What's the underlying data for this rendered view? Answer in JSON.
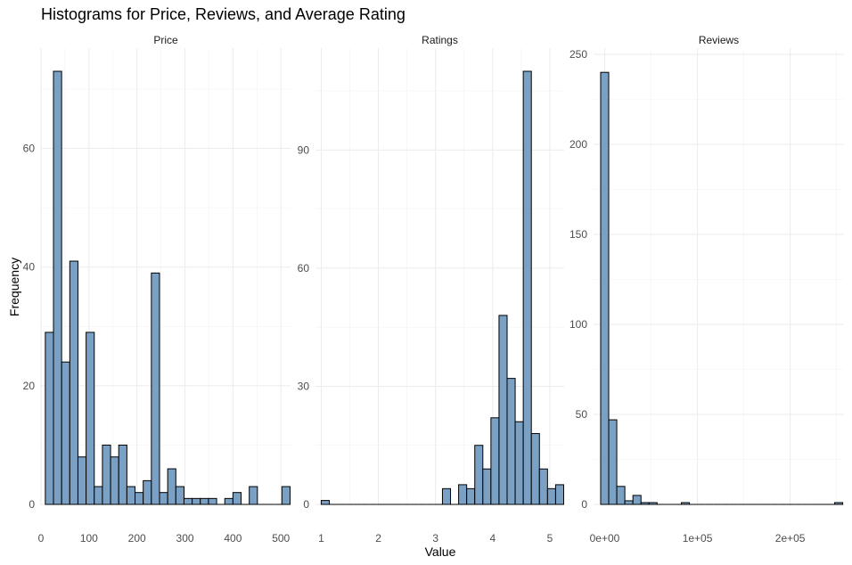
{
  "chart_data": {
    "type": "bar",
    "title": "Histograms for Price, Reviews, and Average Rating",
    "xlabel": "Value",
    "ylabel": "Frequency",
    "bar_fill": "#7aa0c4",
    "bar_stroke": "#000000",
    "grid": true,
    "panels": [
      {
        "name": "Price",
        "xlim": [
          0,
          520
        ],
        "ylim": [
          0,
          73
        ],
        "xticks": [
          {
            "value": 0,
            "label": "0"
          },
          {
            "value": 100,
            "label": "100"
          },
          {
            "value": 200,
            "label": "200"
          },
          {
            "value": 300,
            "label": "300"
          },
          {
            "value": 400,
            "label": "400"
          },
          {
            "value": 500,
            "label": "500"
          }
        ],
        "yticks": [
          {
            "value": 0,
            "label": "0"
          },
          {
            "value": 20,
            "label": "20"
          },
          {
            "value": 40,
            "label": "40"
          },
          {
            "value": 60,
            "label": "60"
          }
        ],
        "bin_width": 17,
        "bin_starts": [
          9,
          26,
          43,
          60,
          77,
          94,
          111,
          128,
          145,
          162,
          179,
          196,
          213,
          230,
          247,
          264,
          281,
          298,
          315,
          332,
          349,
          366,
          383,
          400,
          417,
          434,
          451,
          468,
          485,
          502
        ],
        "counts": [
          29,
          73,
          24,
          41,
          8,
          29,
          3,
          10,
          8,
          10,
          3,
          2,
          4,
          39,
          2,
          6,
          3,
          1,
          1,
          1,
          1,
          0,
          1,
          2,
          0,
          3,
          0,
          0,
          0,
          3
        ]
      },
      {
        "name": "Ratings",
        "xlim": [
          0.9,
          5.25
        ],
        "ylim": [
          0,
          110
        ],
        "xticks": [
          {
            "value": 1,
            "label": "1"
          },
          {
            "value": 2,
            "label": "2"
          },
          {
            "value": 3,
            "label": "3"
          },
          {
            "value": 4,
            "label": "4"
          },
          {
            "value": 5,
            "label": "5"
          }
        ],
        "yticks": [
          {
            "value": 0,
            "label": "0"
          },
          {
            "value": 30,
            "label": "30"
          },
          {
            "value": 60,
            "label": "60"
          },
          {
            "value": 90,
            "label": "90"
          }
        ],
        "bin_width": 0.1414,
        "bin_starts": [
          1.0,
          1.1414,
          1.2828,
          1.4242,
          1.5656,
          1.707,
          1.8484,
          1.9898,
          2.1312,
          2.2726,
          2.414,
          2.5554,
          2.6968,
          2.8382,
          2.9796,
          3.121,
          3.2624,
          3.4038,
          3.5452,
          3.6866,
          3.828,
          3.9694,
          4.1108,
          4.2522,
          4.3936,
          4.535,
          4.6764,
          4.8178,
          4.9592,
          5.1006
        ],
        "counts": [
          1,
          0,
          0,
          0,
          0,
          0,
          0,
          0,
          0,
          0,
          0,
          0,
          0,
          0,
          0,
          4,
          0,
          5,
          4,
          15,
          9,
          22,
          48,
          32,
          21,
          110,
          18,
          9,
          4,
          5
        ]
      },
      {
        "name": "Reviews",
        "xlim": [
          -12000,
          258000
        ],
        "ylim": [
          0,
          250
        ],
        "xticks": [
          {
            "value": 0,
            "label": "0e+00"
          },
          {
            "value": 100000,
            "label": "1e+05"
          },
          {
            "value": 200000,
            "label": "2e+05"
          }
        ],
        "yticks": [
          {
            "value": 0,
            "label": "0"
          },
          {
            "value": 50,
            "label": "50"
          },
          {
            "value": 100,
            "label": "100"
          },
          {
            "value": 150,
            "label": "150"
          },
          {
            "value": 200,
            "label": "200"
          },
          {
            "value": 250,
            "label": "250"
          }
        ],
        "bin_width": 8700,
        "bin_starts": [
          -4350,
          4350,
          13050,
          21750,
          30450,
          39150,
          47850,
          56550,
          65250,
          73950,
          82650,
          91350,
          100050,
          108750,
          117450,
          126150,
          134850,
          143550,
          152250,
          160950,
          169650,
          178350,
          187050,
          195750,
          204450,
          213150,
          221850,
          230550,
          239250,
          247950
        ],
        "counts": [
          240,
          47,
          10,
          2,
          5,
          1,
          1,
          0,
          0,
          0,
          1,
          0,
          0,
          0,
          0,
          0,
          0,
          0,
          0,
          0,
          0,
          0,
          0,
          0,
          0,
          0,
          0,
          0,
          0,
          1
        ]
      }
    ]
  }
}
